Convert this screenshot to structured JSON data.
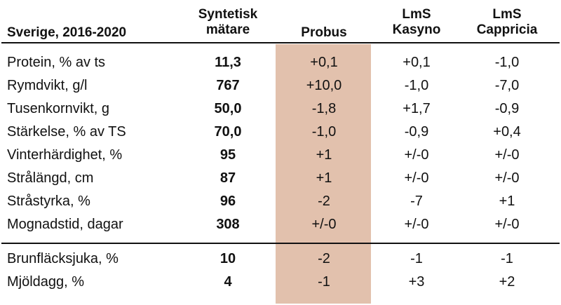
{
  "header": {
    "region": "Sverige, 2016-2020",
    "col_syn": [
      "Syntetisk",
      "mätare"
    ],
    "col_probus": "Probus",
    "col_kasyno": [
      "LmS",
      "Kasyno"
    ],
    "col_cappricia": [
      "LmS",
      "Cappricia"
    ]
  },
  "rows": [
    {
      "label": "Protein, % av ts",
      "syn": "11,3",
      "probus": "+0,1",
      "kasyno": "+0,1",
      "cappricia": "-1,0"
    },
    {
      "label": "Rymdvikt, g/l",
      "syn": "767",
      "probus": "+10,0",
      "kasyno": "-1,0",
      "cappricia": "-7,0"
    },
    {
      "label": "Tusenkornvikt, g",
      "syn": "50,0",
      "probus": "-1,8",
      "kasyno": "+1,7",
      "cappricia": "-0,9"
    },
    {
      "label": "Stärkelse, % av TS",
      "syn": "70,0",
      "probus": "-1,0",
      "kasyno": "-0,9",
      "cappricia": "+0,4"
    },
    {
      "label": "Vinterhärdighet, %",
      "syn": "95",
      "probus": "+1",
      "kasyno": "+/-0",
      "cappricia": "+/-0"
    },
    {
      "label": "Strålängd, cm",
      "syn": "87",
      "probus": "+1",
      "kasyno": "+/-0",
      "cappricia": "+/-0"
    },
    {
      "label": "Stråstyrka, %",
      "syn": "96",
      "probus": "-2",
      "kasyno": "-7",
      "cappricia": "+1"
    },
    {
      "label": "Mognadstid, dagar",
      "syn": "308",
      "probus": "+/-0",
      "kasyno": "+/-0",
      "cappricia": "+/-0"
    },
    {
      "label": "Brunfläcksjuka, %",
      "syn": "10",
      "probus": "-2",
      "kasyno": "-1",
      "cappricia": "-1"
    },
    {
      "label": "Mjöldagg, %",
      "syn": "4",
      "probus": "-1",
      "kasyno": "+3",
      "cappricia": "+2"
    }
  ],
  "colors": {
    "highlight": "#e2c1ad",
    "rule": "#111111"
  }
}
